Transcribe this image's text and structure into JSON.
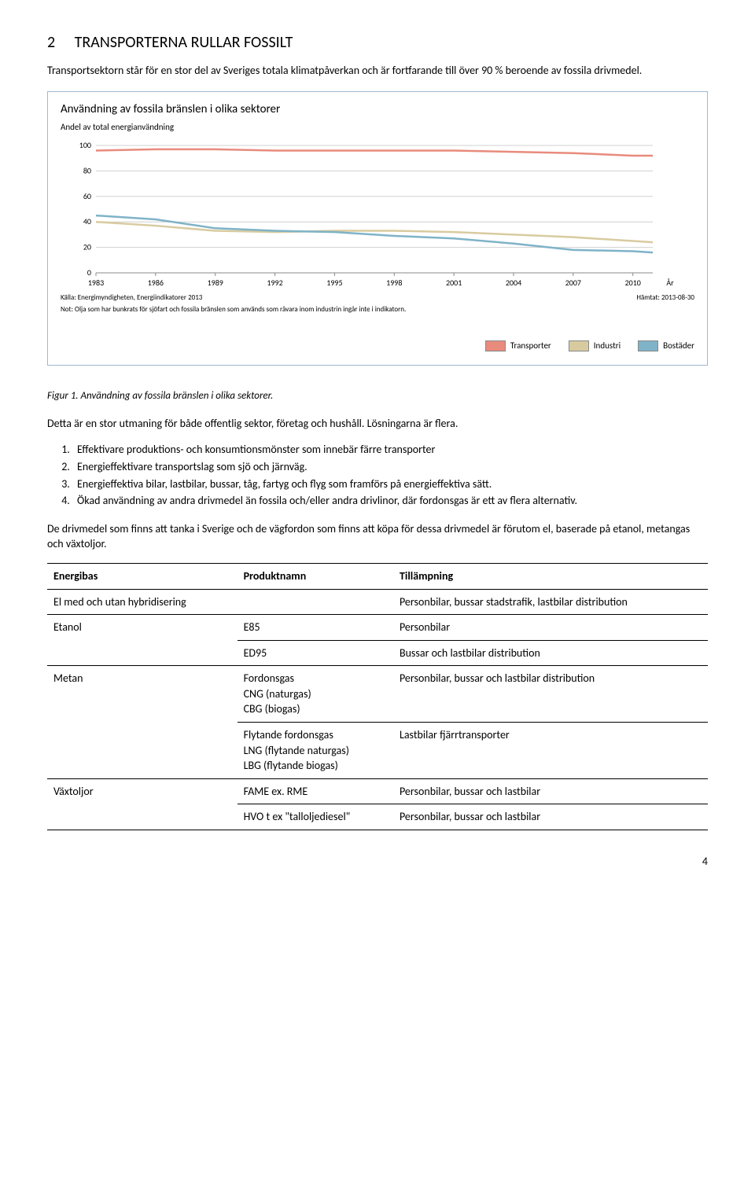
{
  "section": {
    "number": "2",
    "title": "TRANSPORTERNA RULLAR FOSSILT",
    "intro": "Transportsektorn står för en stor del av Sveriges totala klimatpåverkan och är fortfarande till över 90 % beroende av fossila drivmedel."
  },
  "chart": {
    "type": "line",
    "title": "Användning av fossila bränslen i olika sektorer",
    "subtitle": "Andel av total energianvändning",
    "ylabel_fontsize": 10,
    "ylim": [
      0,
      100
    ],
    "ytick_step": 20,
    "yticks": [
      0,
      20,
      40,
      60,
      80,
      100
    ],
    "xlim": [
      1983,
      2011
    ],
    "xticks": [
      1983,
      1986,
      1989,
      1992,
      1995,
      1998,
      2001,
      2004,
      2007,
      2010
    ],
    "x_axis_label": "År",
    "background_color": "#ffffff",
    "grid_color": "#d0d0d0",
    "border_color": "#9db8d1",
    "series": [
      {
        "name": "Transporter",
        "color": "#e88b7d",
        "values": [
          [
            1983,
            96
          ],
          [
            1986,
            97
          ],
          [
            1989,
            97
          ],
          [
            1992,
            96
          ],
          [
            1995,
            96
          ],
          [
            1998,
            96
          ],
          [
            2001,
            96
          ],
          [
            2004,
            95
          ],
          [
            2007,
            94
          ],
          [
            2010,
            92
          ],
          [
            2011,
            92
          ]
        ]
      },
      {
        "name": "Industri",
        "color": "#d8cba0",
        "values": [
          [
            1983,
            40
          ],
          [
            1986,
            37
          ],
          [
            1989,
            33
          ],
          [
            1992,
            32
          ],
          [
            1995,
            33
          ],
          [
            1998,
            33
          ],
          [
            2001,
            32
          ],
          [
            2004,
            30
          ],
          [
            2007,
            28
          ],
          [
            2010,
            25
          ],
          [
            2011,
            24
          ]
        ]
      },
      {
        "name": "Bostäder",
        "color": "#7fb3c8",
        "values": [
          [
            1983,
            45
          ],
          [
            1986,
            42
          ],
          [
            1989,
            35
          ],
          [
            1992,
            33
          ],
          [
            1995,
            32
          ],
          [
            1998,
            29
          ],
          [
            2001,
            27
          ],
          [
            2004,
            23
          ],
          [
            2007,
            18
          ],
          [
            2010,
            17
          ],
          [
            2011,
            16
          ]
        ]
      }
    ],
    "source": "Källa: Energimyndigheten, Energiindikatorer 2013",
    "fetched": "Hämtat: 2013-08-30",
    "note": "Not: Olja som har bunkrats för sjöfart och fossila bränslen som används som råvara inom industrin ingår inte i indikatorn.",
    "legend_labels": [
      "Transporter",
      "Industri",
      "Bostäder"
    ]
  },
  "figure_caption": "Figur 1. Användning av fossila bränslen i olika sektorer.",
  "body1": "Detta är en stor utmaning för både offentlig sektor, företag och hushåll. Lösningarna är flera.",
  "list": [
    "Effektivare produktions- och konsumtionsmönster som innebär färre transporter",
    "Energieffektivare transportslag som sjö och järnväg.",
    "Energieffektiva bilar, lastbilar, bussar, tåg, fartyg och flyg som framförs på energieffektiva sätt.",
    "Ökad användning av andra drivmedel än fossila och/eller andra drivlinor, där fordonsgas är ett av flera alternativ."
  ],
  "body2": "De drivmedel som finns att tanka i Sverige och de vägfordon som finns att köpa för dessa drivmedel är förutom el, baserade på etanol, metangas och växtoljor.",
  "table": {
    "headers": [
      "Energibas",
      "Produktnamn",
      "Tillämpning"
    ],
    "rows": [
      {
        "energibas": "El med och utan hybridisering",
        "produktnamn": "",
        "tillampning": "Personbilar, bussar stadstrafik, lastbilar distribution"
      },
      {
        "energibas": "Etanol",
        "produktnamn": "E85",
        "tillampning": "Personbilar",
        "sub": [
          {
            "produktnamn": "ED95",
            "tillampning": "Bussar och lastbilar distribution"
          }
        ]
      },
      {
        "energibas": "Metan",
        "produktnamn_lines": [
          "Fordonsgas",
          "CNG (naturgas)",
          "CBG (biogas)"
        ],
        "tillampning": "Personbilar, bussar och lastbilar distribution",
        "sub": [
          {
            "produktnamn_lines": [
              "Flytande fordonsgas",
              "LNG (flytande naturgas)",
              "LBG (flytande biogas)"
            ],
            "tillampning": "Lastbilar fjärrtransporter"
          }
        ]
      },
      {
        "energibas": "Växtoljor",
        "produktnamn": "FAME ex. RME",
        "tillampning": "Personbilar, bussar och lastbilar",
        "sub": [
          {
            "produktnamn": "HVO t ex \"talloljediesel\"",
            "tillampning": "Personbilar, bussar och lastbilar"
          }
        ]
      }
    ]
  },
  "page_number": "4"
}
